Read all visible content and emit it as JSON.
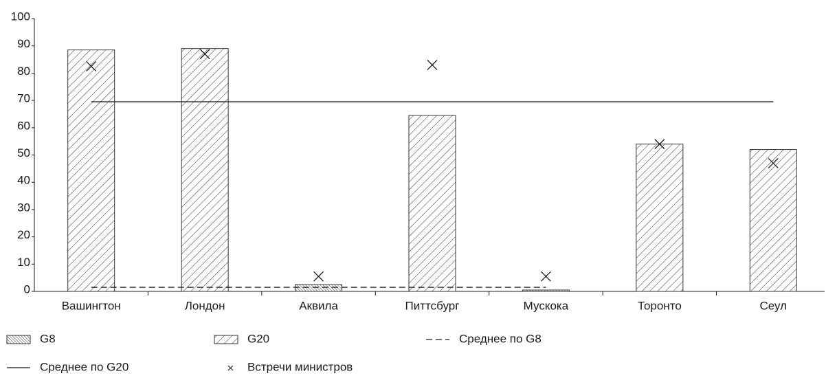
{
  "chart_data": {
    "type": "bar",
    "categories": [
      "Вашингтон",
      "Лондон",
      "Аквила",
      "Питтсбург",
      "Мускока",
      "Торонто",
      "Сеул"
    ],
    "series": [
      {
        "name": "G8",
        "type": "bar",
        "pattern": "dense",
        "color": "#333333",
        "values": [
          null,
          null,
          2.5,
          null,
          0.5,
          null,
          null
        ]
      },
      {
        "name": "G20",
        "type": "bar",
        "pattern": "sparse",
        "color": "#333333",
        "values": [
          88.5,
          89,
          null,
          64.5,
          null,
          54,
          52
        ]
      },
      {
        "name": "Среднее по G8",
        "type": "line",
        "dash": true,
        "color": "#1a1a1a",
        "values": [
          1.5,
          1.5,
          1.5,
          1.5,
          1.5,
          null,
          null
        ]
      },
      {
        "name": "Среднее по G20",
        "type": "line",
        "dash": false,
        "color": "#1a1a1a",
        "values": [
          69.5,
          69.5,
          69.5,
          69.5,
          69.5,
          69.5,
          69.5
        ]
      },
      {
        "name": "Встречи министров",
        "type": "cross",
        "color": "#1a1a1a",
        "values": [
          82.5,
          87,
          5.5,
          83,
          5.5,
          54,
          47
        ]
      }
    ],
    "ylim": [
      0,
      100
    ],
    "yticks": [
      0,
      10,
      20,
      30,
      40,
      50,
      60,
      70,
      80,
      90,
      100
    ],
    "grid": false
  }
}
